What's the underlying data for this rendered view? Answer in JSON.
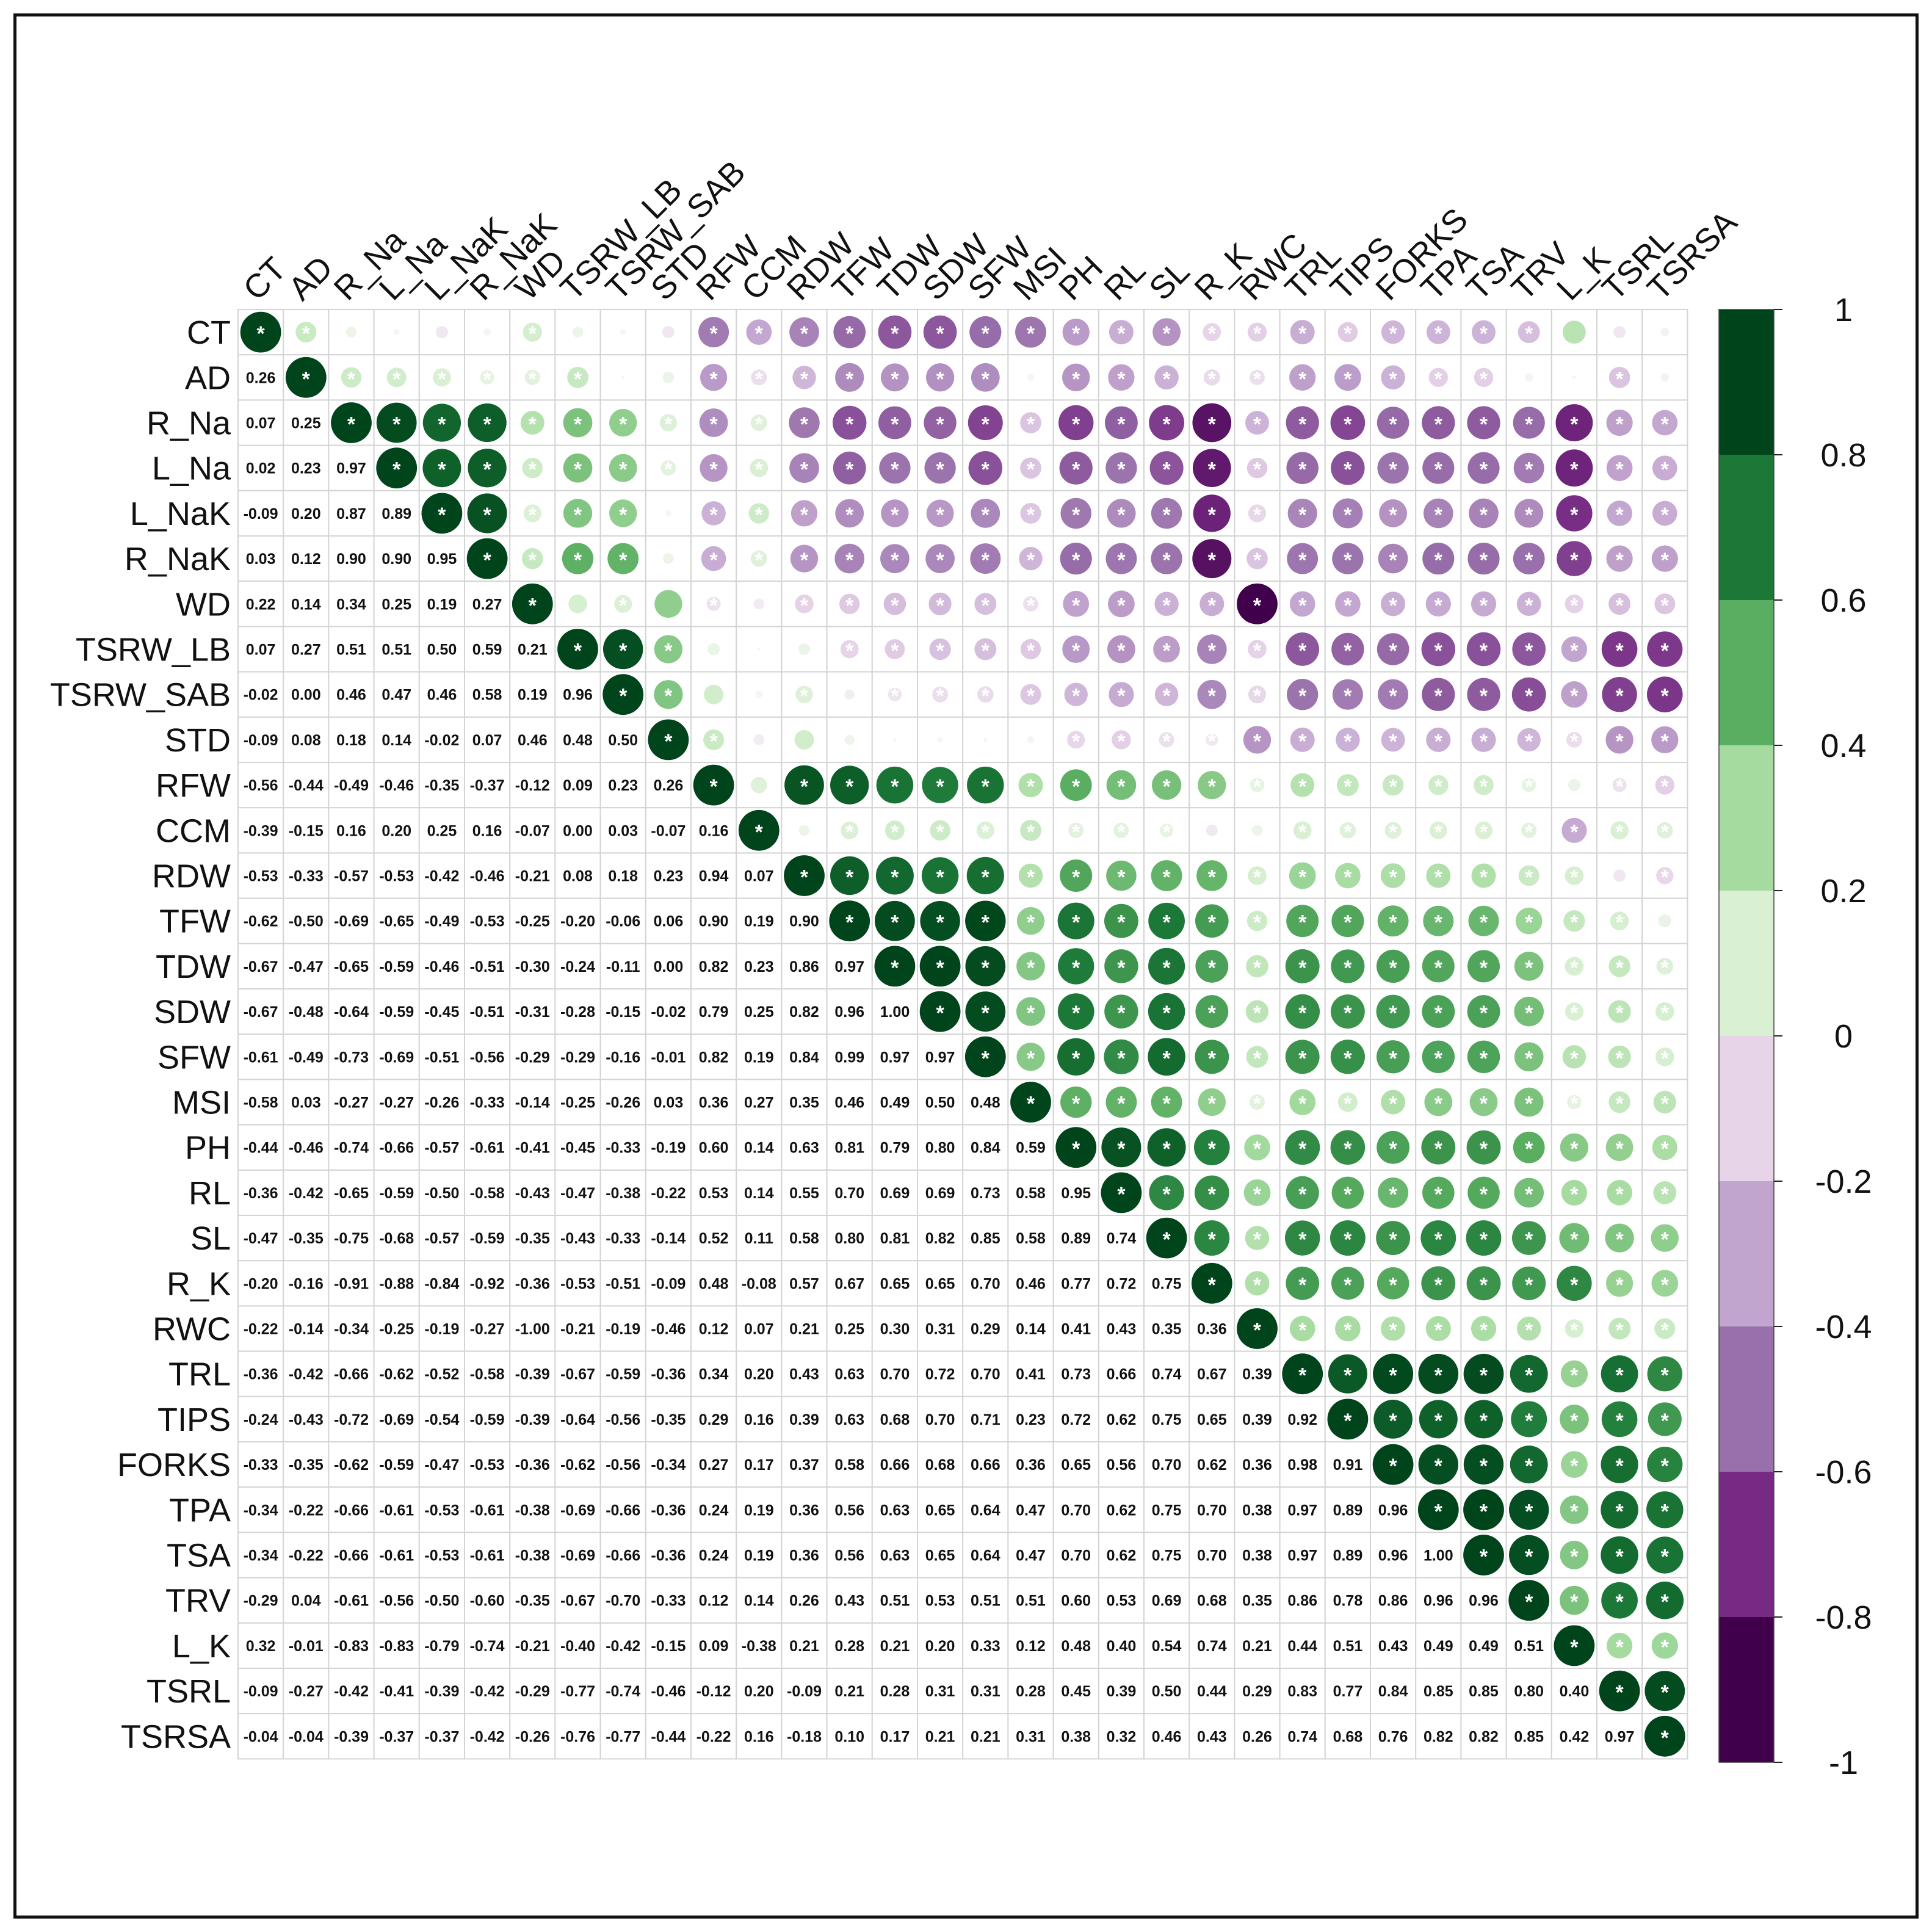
{
  "chart_data": {
    "type": "heatmap",
    "style": "mixed correlation matrix: circles with significance stars above diagonal, numbers below",
    "variables": [
      "CT",
      "AD",
      "R_Na",
      "L_Na",
      "L_NaK",
      "R_NaK",
      "WD",
      "TSRW_LB",
      "TSRW_SAB",
      "STD",
      "RFW",
      "CCM",
      "RDW",
      "TFW",
      "TDW",
      "SDW",
      "SFW",
      "MSI",
      "PH",
      "RL",
      "SL",
      "R_K",
      "RWC",
      "TRL",
      "TIPS",
      "FORKS",
      "TPA",
      "TSA",
      "TRV",
      "L_K",
      "TSRL",
      "TSRSA"
    ],
    "lower_values": [
      [],
      [
        "0.26"
      ],
      [
        "0.07",
        "0.25"
      ],
      [
        "0.02",
        "0.23",
        "0.97"
      ],
      [
        "-0.09",
        "0.20",
        "0.87",
        "0.89"
      ],
      [
        "0.03",
        "0.12",
        "0.90",
        "0.90",
        "0.95"
      ],
      [
        "0.22",
        "0.14",
        "0.34",
        "0.25",
        "0.19",
        "0.27"
      ],
      [
        "0.07",
        "0.27",
        "0.51",
        "0.51",
        "0.50",
        "0.59",
        "0.21"
      ],
      [
        "-0.02",
        "0.00",
        "0.46",
        "0.47",
        "0.46",
        "0.58",
        "0.19",
        "0.96"
      ],
      [
        "-0.09",
        "0.08",
        "0.18",
        "0.14",
        "-0.02",
        "0.07",
        "0.46",
        "0.48",
        "0.50"
      ],
      [
        "-0.56",
        "-0.44",
        "-0.49",
        "-0.46",
        "-0.35",
        "-0.37",
        "-0.12",
        "0.09",
        "0.23",
        "0.26"
      ],
      [
        "-0.39",
        "-0.15",
        "0.16",
        "0.20",
        "0.25",
        "0.16",
        "-0.07",
        "0.00",
        "0.03",
        "-0.07",
        "0.16"
      ],
      [
        "-0.53",
        "-0.33",
        "-0.57",
        "-0.53",
        "-0.42",
        "-0.46",
        "-0.21",
        "0.08",
        "0.18",
        "0.23",
        "0.94",
        "0.07"
      ],
      [
        "-0.62",
        "-0.50",
        "-0.69",
        "-0.65",
        "-0.49",
        "-0.53",
        "-0.25",
        "-0.20",
        "-0.06",
        "0.06",
        "0.90",
        "0.19",
        "0.90"
      ],
      [
        "-0.67",
        "-0.47",
        "-0.65",
        "-0.59",
        "-0.46",
        "-0.51",
        "-0.30",
        "-0.24",
        "-0.11",
        "0.00",
        "0.82",
        "0.23",
        "0.86",
        "0.97"
      ],
      [
        "-0.67",
        "-0.48",
        "-0.64",
        "-0.59",
        "-0.45",
        "-0.51",
        "-0.31",
        "-0.28",
        "-0.15",
        "-0.02",
        "0.79",
        "0.25",
        "0.82",
        "0.96",
        "1.00"
      ],
      [
        "-0.61",
        "-0.49",
        "-0.73",
        "-0.69",
        "-0.51",
        "-0.56",
        "-0.29",
        "-0.29",
        "-0.16",
        "-0.01",
        "0.82",
        "0.19",
        "0.84",
        "0.99",
        "0.97",
        "0.97"
      ],
      [
        "-0.58",
        "0.03",
        "-0.27",
        "-0.27",
        "-0.26",
        "-0.33",
        "-0.14",
        "-0.25",
        "-0.26",
        "0.03",
        "0.36",
        "0.27",
        "0.35",
        "0.46",
        "0.49",
        "0.50",
        "0.48"
      ],
      [
        "-0.44",
        "-0.46",
        "-0.74",
        "-0.66",
        "-0.57",
        "-0.61",
        "-0.41",
        "-0.45",
        "-0.33",
        "-0.19",
        "0.60",
        "0.14",
        "0.63",
        "0.81",
        "0.79",
        "0.80",
        "0.84",
        "0.59"
      ],
      [
        "-0.36",
        "-0.42",
        "-0.65",
        "-0.59",
        "-0.50",
        "-0.58",
        "-0.43",
        "-0.47",
        "-0.38",
        "-0.22",
        "0.53",
        "0.14",
        "0.55",
        "0.70",
        "0.69",
        "0.69",
        "0.73",
        "0.58",
        "0.95"
      ],
      [
        "-0.47",
        "-0.35",
        "-0.75",
        "-0.68",
        "-0.57",
        "-0.59",
        "-0.35",
        "-0.43",
        "-0.33",
        "-0.14",
        "0.52",
        "0.11",
        "0.58",
        "0.80",
        "0.81",
        "0.82",
        "0.85",
        "0.58",
        "0.89",
        "0.74"
      ],
      [
        "-0.20",
        "-0.16",
        "-0.91",
        "-0.88",
        "-0.84",
        "-0.92",
        "-0.36",
        "-0.53",
        "-0.51",
        "-0.09",
        "0.48",
        "-0.08",
        "0.57",
        "0.67",
        "0.65",
        "0.65",
        "0.70",
        "0.46",
        "0.77",
        "0.72",
        "0.75"
      ],
      [
        "-0.22",
        "-0.14",
        "-0.34",
        "-0.25",
        "-0.19",
        "-0.27",
        "-1.00",
        "-0.21",
        "-0.19",
        "-0.46",
        "0.12",
        "0.07",
        "0.21",
        "0.25",
        "0.30",
        "0.31",
        "0.29",
        "0.14",
        "0.41",
        "0.43",
        "0.35",
        "0.36"
      ],
      [
        "-0.36",
        "-0.42",
        "-0.66",
        "-0.62",
        "-0.52",
        "-0.58",
        "-0.39",
        "-0.67",
        "-0.59",
        "-0.36",
        "0.34",
        "0.20",
        "0.43",
        "0.63",
        "0.70",
        "0.72",
        "0.70",
        "0.41",
        "0.73",
        "0.66",
        "0.74",
        "0.67",
        "0.39"
      ],
      [
        "-0.24",
        "-0.43",
        "-0.72",
        "-0.69",
        "-0.54",
        "-0.59",
        "-0.39",
        "-0.64",
        "-0.56",
        "-0.35",
        "0.29",
        "0.16",
        "0.39",
        "0.63",
        "0.68",
        "0.70",
        "0.71",
        "0.23",
        "0.72",
        "0.62",
        "0.75",
        "0.65",
        "0.39",
        "0.92"
      ],
      [
        "-0.33",
        "-0.35",
        "-0.62",
        "-0.59",
        "-0.47",
        "-0.53",
        "-0.36",
        "-0.62",
        "-0.56",
        "-0.34",
        "0.27",
        "0.17",
        "0.37",
        "0.58",
        "0.66",
        "0.68",
        "0.66",
        "0.36",
        "0.65",
        "0.56",
        "0.70",
        "0.62",
        "0.36",
        "0.98",
        "0.91"
      ],
      [
        "-0.34",
        "-0.22",
        "-0.66",
        "-0.61",
        "-0.53",
        "-0.61",
        "-0.38",
        "-0.69",
        "-0.66",
        "-0.36",
        "0.24",
        "0.19",
        "0.36",
        "0.56",
        "0.63",
        "0.65",
        "0.64",
        "0.47",
        "0.70",
        "0.62",
        "0.75",
        "0.70",
        "0.38",
        "0.97",
        "0.89",
        "0.96"
      ],
      [
        "-0.34",
        "-0.22",
        "-0.66",
        "-0.61",
        "-0.53",
        "-0.61",
        "-0.38",
        "-0.69",
        "-0.66",
        "-0.36",
        "0.24",
        "0.19",
        "0.36",
        "0.56",
        "0.63",
        "0.65",
        "0.64",
        "0.47",
        "0.70",
        "0.62",
        "0.75",
        "0.70",
        "0.38",
        "0.97",
        "0.89",
        "0.96",
        "1.00"
      ],
      [
        "-0.29",
        "0.04",
        "-0.61",
        "-0.56",
        "-0.50",
        "-0.60",
        "-0.35",
        "-0.67",
        "-0.70",
        "-0.33",
        "0.12",
        "0.14",
        "0.26",
        "0.43",
        "0.51",
        "0.53",
        "0.51",
        "0.51",
        "0.60",
        "0.53",
        "0.69",
        "0.68",
        "0.35",
        "0.86",
        "0.78",
        "0.86",
        "0.96",
        "0.96"
      ],
      [
        "0.32",
        "-0.01",
        "-0.83",
        "-0.83",
        "-0.79",
        "-0.74",
        "-0.21",
        "-0.40",
        "-0.42",
        "-0.15",
        "0.09",
        "-0.38",
        "0.21",
        "0.28",
        "0.21",
        "0.20",
        "0.33",
        "0.12",
        "0.48",
        "0.40",
        "0.54",
        "0.74",
        "0.21",
        "0.44",
        "0.51",
        "0.43",
        "0.49",
        "0.49",
        "0.51"
      ],
      [
        "-0.09",
        "-0.27",
        "-0.42",
        "-0.41",
        "-0.39",
        "-0.42",
        "-0.29",
        "-0.77",
        "-0.74",
        "-0.46",
        "-0.12",
        "0.20",
        "-0.09",
        "0.21",
        "0.28",
        "0.31",
        "0.31",
        "0.28",
        "0.45",
        "0.39",
        "0.50",
        "0.44",
        "0.29",
        "0.83",
        "0.77",
        "0.84",
        "0.85",
        "0.85",
        "0.80",
        "0.40"
      ],
      [
        "-0.04",
        "-0.04",
        "-0.39",
        "-0.37",
        "-0.37",
        "-0.42",
        "-0.26",
        "-0.76",
        "-0.77",
        "-0.44",
        "-0.22",
        "0.16",
        "-0.18",
        "0.10",
        "0.17",
        "0.21",
        "0.21",
        "0.31",
        "0.38",
        "0.32",
        "0.46",
        "0.43",
        "0.26",
        "0.74",
        "0.68",
        "0.76",
        "0.82",
        "0.82",
        "0.85",
        "0.42",
        "0.97"
      ]
    ],
    "nonsignificant_pairs": [
      [
        "CT",
        "R_Na"
      ],
      [
        "CT",
        "L_Na"
      ],
      [
        "CT",
        "L_NaK"
      ],
      [
        "CT",
        "R_NaK"
      ],
      [
        "CT",
        "TSRW_SAB"
      ],
      [
        "CT",
        "STD"
      ],
      [
        "CT",
        "TSRL"
      ],
      [
        "CT",
        "TSRSA"
      ],
      [
        "AD",
        "TSRW_SAB"
      ],
      [
        "AD",
        "STD"
      ],
      [
        "AD",
        "MSI"
      ],
      [
        "AD",
        "TRV"
      ],
      [
        "AD",
        "L_K"
      ],
      [
        "AD",
        "TSRSA"
      ],
      [
        "WD",
        "TSRW_LB"
      ],
      [
        "L_NaK",
        "STD"
      ],
      [
        "R_NaK",
        "STD"
      ],
      [
        "CT",
        "L_K"
      ],
      [
        "RFW",
        "TSRW_LB"
      ],
      [
        "CCM",
        "TSRW_LB"
      ],
      [
        "CCM",
        "TSRW_SAB"
      ],
      [
        "CCM",
        "STD"
      ],
      [
        "CCM",
        "RFW"
      ],
      [
        "CCM",
        "RDW"
      ],
      [
        "CCM",
        "RWC"
      ],
      [
        "TSRW_LB",
        "RDW"
      ],
      [
        "TSRW_SAB",
        "TFW"
      ],
      [
        "STD",
        "TFW"
      ],
      [
        "STD",
        "TDW"
      ],
      [
        "STD",
        "SDW"
      ],
      [
        "STD",
        "SFW"
      ],
      [
        "STD",
        "MSI"
      ],
      [
        "STD",
        "RDW"
      ],
      [
        "RFW",
        "TSRW_SAB"
      ],
      [
        "RFW",
        "L_K"
      ],
      [
        "RDW",
        "TSRL"
      ],
      [
        "TFW",
        "TSRSA"
      ],
      [
        "WD",
        "STD"
      ]
    ],
    "colorbar": {
      "ticks": [
        "1",
        "0.8",
        "0.6",
        "0.4",
        "0.2",
        "0",
        "-0.2",
        "-0.4",
        "-0.6",
        "-0.8",
        "-1"
      ],
      "colors": [
        "#00441b",
        "#1b7837",
        "#5aae61",
        "#a6dba0",
        "#d9f0d3",
        "#e7d4e8",
        "#c2a5cf",
        "#9970ab",
        "#762a83",
        "#40004b"
      ]
    },
    "xlabel": "",
    "ylabel": "",
    "title": ""
  }
}
